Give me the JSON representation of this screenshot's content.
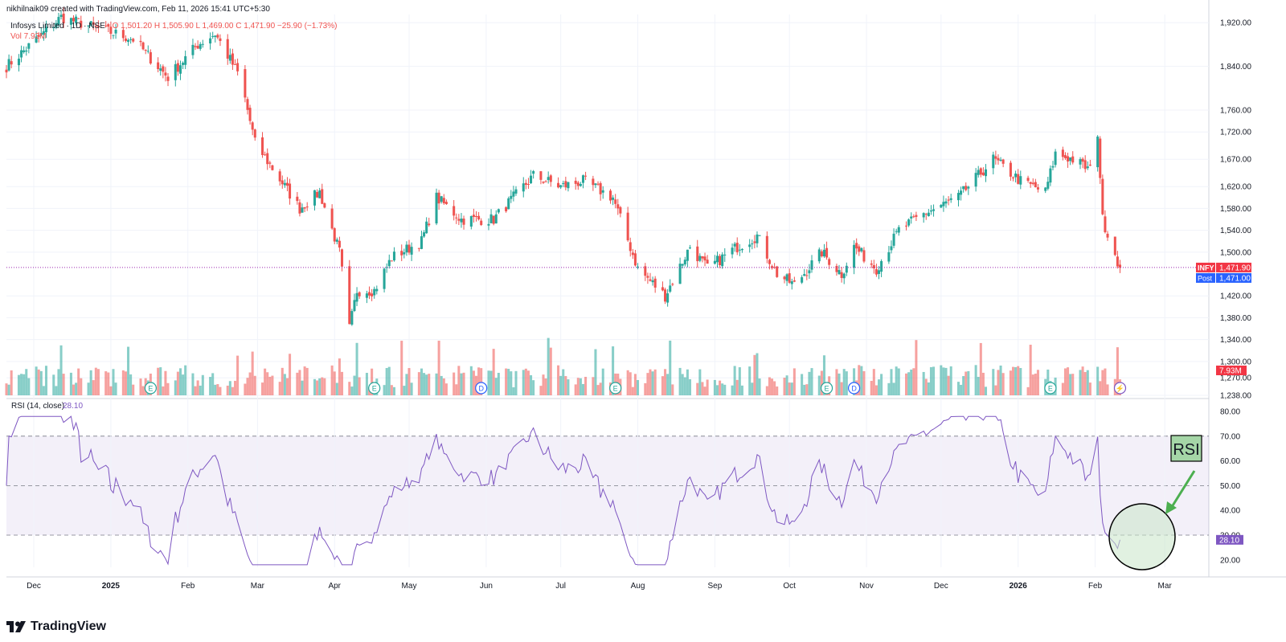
{
  "header": {
    "credit": "nikhilnaik09 created with TradingView.com, Feb 11, 2026 15:41 UTC+5:30",
    "symbol_line": "Infosys Limited · 1D · NSE",
    "ohlc": "O 1,501.20 H 1,505.90 L 1,469.00 C 1,471.90 −25.90 (−1.73%)",
    "vol_line": "Vol 7.93M"
  },
  "branding": {
    "logo_text": "TradingView"
  },
  "colors": {
    "up": "#26a69a",
    "down": "#ef5350",
    "rsi": "#7e57c2",
    "price_tag": "#f23645",
    "post_tag": "#2962ff"
  },
  "chart_data": [
    {
      "type": "candlestick",
      "symbol": "INFY",
      "interval": "1D",
      "x_ticks": [
        "Dec",
        "2025",
        "Feb",
        "Mar",
        "Apr",
        "May",
        "Jun",
        "Jul",
        "Aug",
        "Sep",
        "Oct",
        "Nov",
        "Dec",
        "2026",
        "Feb",
        "Mar"
      ],
      "y_ticks": [
        "1,920.00",
        "1,840.00",
        "1,760.00",
        "1,720.00",
        "1,670.00",
        "1,620.00",
        "1,580.00",
        "1,540.00",
        "1,500.00",
        "1,420.00",
        "1,380.00",
        "1,340.00",
        "1,300.00",
        "1,270.00",
        "1,238.00"
      ],
      "y_range": [
        1238,
        1935
      ],
      "price_anchor": [
        [
          "2024-11-20",
          1840
        ],
        [
          "2024-12-12",
          1930
        ],
        [
          "2025-01-10",
          1890
        ],
        [
          "2025-01-24",
          1820
        ],
        [
          "2025-02-05",
          1880
        ],
        [
          "2025-02-12",
          1900
        ],
        [
          "2025-02-22",
          1820
        ],
        [
          "2025-02-28",
          1700
        ],
        [
          "2025-03-12",
          1620
        ],
        [
          "2025-03-18",
          1580
        ],
        [
          "2025-03-26",
          1610
        ],
        [
          "2025-04-03",
          1500
        ],
        [
          "2025-04-07",
          1360
        ],
        [
          "2025-04-10",
          1430
        ],
        [
          "2025-04-17",
          1430
        ],
        [
          "2025-04-24",
          1490
        ],
        [
          "2025-05-06",
          1520
        ],
        [
          "2025-05-12",
          1600
        ],
        [
          "2025-05-22",
          1560
        ],
        [
          "2025-06-04",
          1560
        ],
        [
          "2025-06-20",
          1640
        ],
        [
          "2025-07-01",
          1620
        ],
        [
          "2025-07-10",
          1630
        ],
        [
          "2025-07-22",
          1600
        ],
        [
          "2025-08-01",
          1470
        ],
        [
          "2025-08-12",
          1420
        ],
        [
          "2025-08-22",
          1510
        ],
        [
          "2025-08-29",
          1470
        ],
        [
          "2025-09-10",
          1510
        ],
        [
          "2025-09-18",
          1530
        ],
        [
          "2025-09-26",
          1460
        ],
        [
          "2025-10-03",
          1440
        ],
        [
          "2025-10-14",
          1500
        ],
        [
          "2025-10-22",
          1460
        ],
        [
          "2025-10-27",
          1510
        ],
        [
          "2025-11-05",
          1470
        ],
        [
          "2025-11-14",
          1540
        ],
        [
          "2025-11-24",
          1570
        ],
        [
          "2025-12-08",
          1600
        ],
        [
          "2025-12-22",
          1670
        ],
        [
          "2026-01-02",
          1630
        ],
        [
          "2026-01-12",
          1610
        ],
        [
          "2026-01-16",
          1680
        ],
        [
          "2026-01-23",
          1670
        ],
        [
          "2026-01-30",
          1650
        ],
        [
          "2026-02-02",
          1720
        ],
        [
          "2026-02-04",
          1560
        ],
        [
          "2026-02-11",
          1471.9
        ]
      ],
      "last_price": "1,471.90",
      "post_price": "1,471.00",
      "price_label": "INFY",
      "post_label": "Post"
    },
    {
      "type": "bar",
      "name": "Vol",
      "last_value": "7.93M",
      "events": [
        {
          "date": "2025-01-17",
          "label": "E"
        },
        {
          "date": "2025-04-17",
          "label": "E"
        },
        {
          "date": "2025-05-30",
          "label": "D"
        },
        {
          "date": "2025-07-23",
          "label": "E"
        },
        {
          "date": "2025-10-16",
          "label": "E"
        },
        {
          "date": "2025-10-27",
          "label": "D"
        },
        {
          "date": "2026-01-14",
          "label": "E"
        },
        {
          "date": "2026-02-11",
          "label": "⚡"
        }
      ]
    },
    {
      "type": "line",
      "title": "RSI (14, close)",
      "last_value": "28.10",
      "y_ticks": [
        "80.00",
        "70.00",
        "60.00",
        "50.00",
        "40.00",
        "30.00",
        "20.00"
      ],
      "y_range": [
        17,
        80
      ],
      "bands": [
        30,
        50,
        70
      ],
      "annotation": "RSI"
    }
  ]
}
